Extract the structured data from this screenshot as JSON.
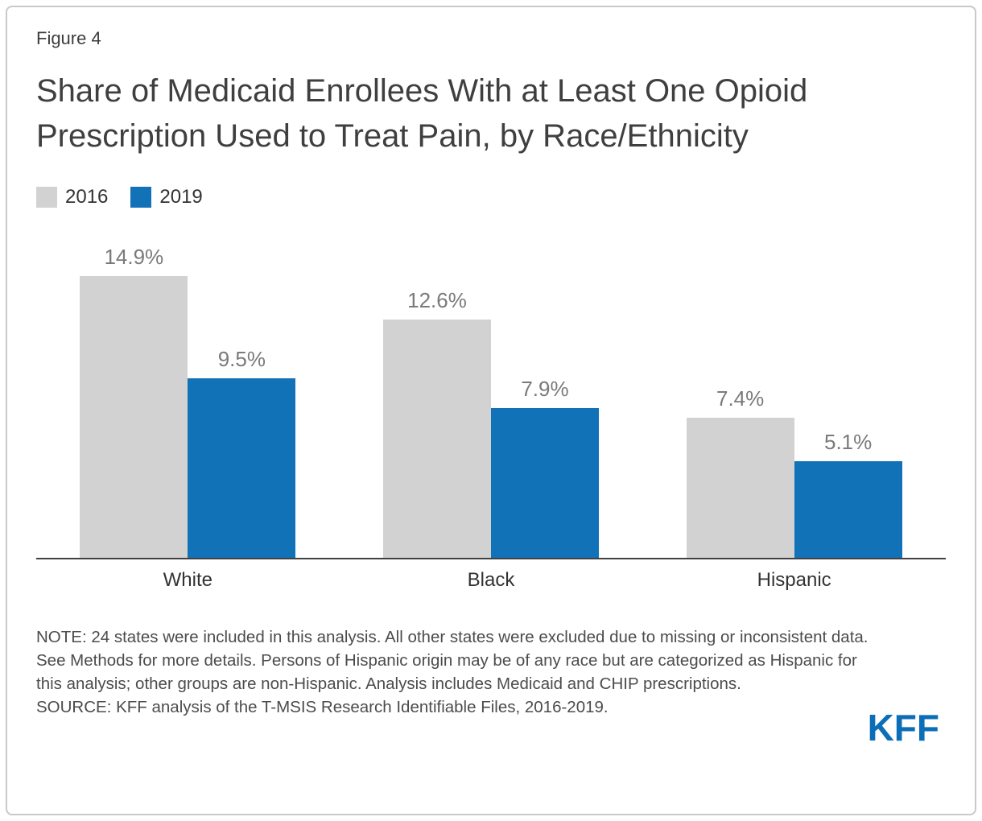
{
  "figure_label": "Figure 4",
  "chart_data": {
    "type": "bar",
    "title": "Share of Medicaid Enrollees With at Least One Opioid Prescription Used to Treat Pain, by Race/Ethnicity",
    "categories": [
      "White",
      "Black",
      "Hispanic"
    ],
    "series": [
      {
        "name": "2016",
        "color": "#d2d2d2",
        "values": [
          14.9,
          12.6,
          7.4
        ],
        "labels": [
          "14.9%",
          "12.6%",
          "7.4%"
        ]
      },
      {
        "name": "2019",
        "color": "#1272b8",
        "values": [
          9.5,
          7.9,
          5.1
        ],
        "labels": [
          "9.5%",
          "7.9%",
          "5.1%"
        ]
      }
    ],
    "xlabel": "",
    "ylabel": "",
    "ylim": [
      0,
      16
    ],
    "grid": false,
    "legend_position": "top-left",
    "value_label_format": "percent"
  },
  "note": "NOTE: 24 states were included in this analysis. All other states were excluded due to missing or inconsistent data. See Methods for more details. Persons of Hispanic origin may be of any race but are categorized as Hispanic for this analysis; other groups are non-Hispanic. Analysis includes Medicaid and CHIP prescriptions.",
  "source": "SOURCE: KFF analysis of the T-MSIS Research Identifiable Files, 2016-2019.",
  "logo_text": "KFF",
  "colors": {
    "bar_2016": "#d2d2d2",
    "bar_2019": "#1272b8",
    "logo_blue": "#0d6eb8",
    "title_text": "#3f3f3f",
    "value_label": "#7a7a7a",
    "note_text": "#4c4c4c",
    "axis_line": "#414141",
    "card_border": "#c9c9c9"
  }
}
